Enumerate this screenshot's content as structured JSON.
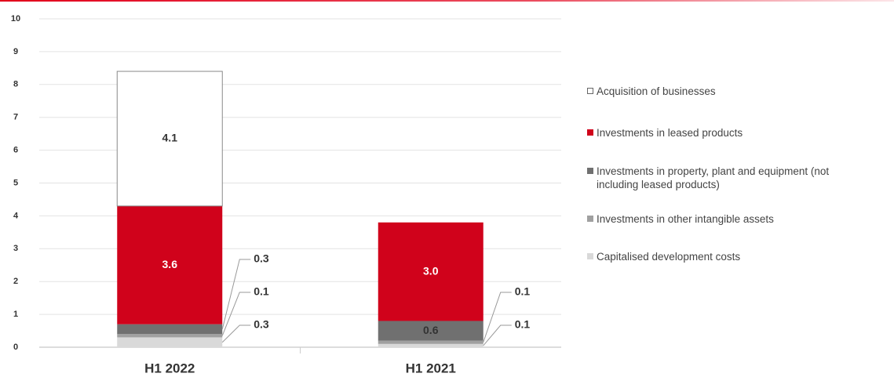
{
  "chart_data": {
    "type": "stacked_bar",
    "categories": [
      "H1 2022",
      "H1 2021"
    ],
    "series": [
      {
        "name": "Capitalised development costs",
        "color": "#d9d9d9",
        "values": [
          0.3,
          0.1
        ],
        "value_labels": [
          "0.3",
          "0.1"
        ]
      },
      {
        "name": "Investments in other intangible assets",
        "color": "#a0a0a0",
        "values": [
          0.1,
          0.1
        ],
        "value_labels": [
          "0.1",
          "0.1"
        ]
      },
      {
        "name": "Investments in property, plant and equipment (not including leased products)",
        "color": "#707070",
        "values": [
          0.3,
          0.6
        ],
        "value_labels": [
          "0.3",
          "0.6"
        ]
      },
      {
        "name": "Investments in leased products",
        "color": "#d0021b",
        "values": [
          3.6,
          3.0
        ],
        "value_labels": [
          "3.6",
          "3.0"
        ]
      },
      {
        "name": "Acquisition of businesses",
        "color": "#ffffff",
        "values": [
          4.1,
          null
        ],
        "value_labels": [
          "4.1",
          null
        ]
      }
    ],
    "ylim": [
      0,
      10
    ],
    "yticks": [
      0,
      1,
      2,
      3,
      4,
      5,
      6,
      7,
      8,
      9,
      10
    ],
    "grid": true
  }
}
